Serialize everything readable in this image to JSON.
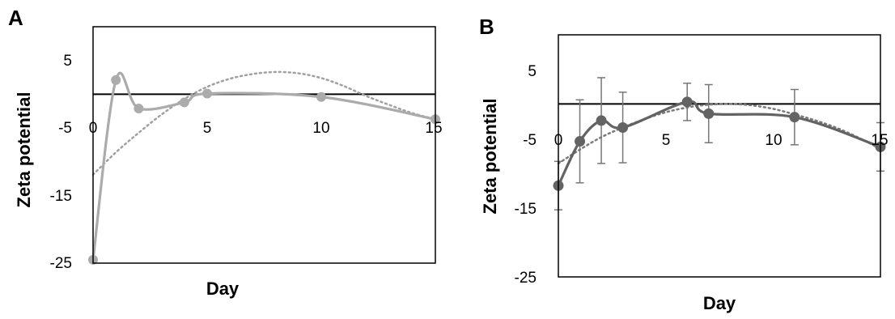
{
  "chart_data": [
    {
      "panel_label": "A",
      "type": "line",
      "xlabel": "Day",
      "ylabel": "Zeta potential",
      "xlim": [
        0,
        15
      ],
      "ylim": [
        -25,
        10
      ],
      "xticks": [
        "0",
        "5",
        "10",
        "15"
      ],
      "yticks": [
        "5",
        "-5",
        "-15",
        "-25"
      ],
      "x_tick_values": [
        0,
        5,
        10,
        15
      ],
      "y_tick_values": [
        5,
        -5,
        -15,
        -25
      ],
      "grid": false,
      "zero_line": true,
      "series": [
        {
          "kind": "data",
          "style": "solid-line-with-markers",
          "color": "#ababab",
          "points": [
            [
              0,
              -24.5
            ],
            [
              1,
              2.1
            ],
            [
              2,
              -2.1
            ],
            [
              4,
              -1.2
            ],
            [
              5,
              0.1
            ],
            [
              10,
              -0.4
            ],
            [
              15,
              -3.7
            ]
          ]
        },
        {
          "kind": "trend",
          "style": "dotted",
          "color": "#a0a0a0",
          "points": [
            [
              0,
              -11.9
            ],
            [
              1,
              -8.6
            ],
            [
              2,
              -5.7
            ],
            [
              3,
              -3.0
            ],
            [
              4,
              -0.7
            ],
            [
              5,
              1.1
            ],
            [
              6,
              2.3
            ],
            [
              7,
              3.0
            ],
            [
              8,
              3.3
            ],
            [
              9,
              3.1
            ],
            [
              10,
              2.4
            ],
            [
              11,
              1.2
            ],
            [
              12,
              -0.3
            ],
            [
              13,
              -1.6
            ],
            [
              14,
              -2.8
            ],
            [
              15,
              -3.7
            ]
          ]
        }
      ]
    },
    {
      "panel_label": "B",
      "type": "line",
      "xlabel": "Day",
      "ylabel": "Zeta potential",
      "xlim": [
        0,
        15
      ],
      "ylim": [
        -25,
        10
      ],
      "xticks": [
        "0",
        "5",
        "10",
        "15"
      ],
      "yticks": [
        "5",
        "-5",
        "-15",
        "-25"
      ],
      "x_tick_values": [
        0,
        5,
        10,
        15
      ],
      "y_tick_values": [
        5,
        -5,
        -15,
        -25
      ],
      "grid": false,
      "zero_line": true,
      "series": [
        {
          "kind": "data",
          "style": "solid-line-with-markers-and-error-bars",
          "color": "#636363",
          "points": [
            [
              0,
              -11.8
            ],
            [
              1,
              -5.4
            ],
            [
              2,
              -2.4
            ],
            [
              3,
              -3.4
            ],
            [
              6,
              0.3
            ],
            [
              7,
              -1.4
            ],
            [
              11,
              -1.9
            ],
            [
              15,
              -6.2
            ]
          ],
          "errors": [
            3.5,
            6.0,
            6.2,
            5.1,
            2.7,
            4.2,
            4.0,
            3.5
          ]
        },
        {
          "kind": "trend",
          "style": "dotted",
          "color": "#7a7a7a",
          "points": [
            [
              0,
              -8.6
            ],
            [
              1,
              -6.6
            ],
            [
              2,
              -4.8
            ],
            [
              3,
              -3.4
            ],
            [
              4,
              -2.2
            ],
            [
              5,
              -1.2
            ],
            [
              6,
              -0.5
            ],
            [
              7,
              -0.1
            ],
            [
              8,
              0.0
            ],
            [
              9,
              -0.2
            ],
            [
              10,
              -0.7
            ],
            [
              11,
              -1.5
            ],
            [
              12,
              -2.4
            ],
            [
              13,
              -3.5
            ],
            [
              14,
              -4.9
            ],
            [
              15,
              -6.5
            ]
          ]
        }
      ]
    }
  ]
}
